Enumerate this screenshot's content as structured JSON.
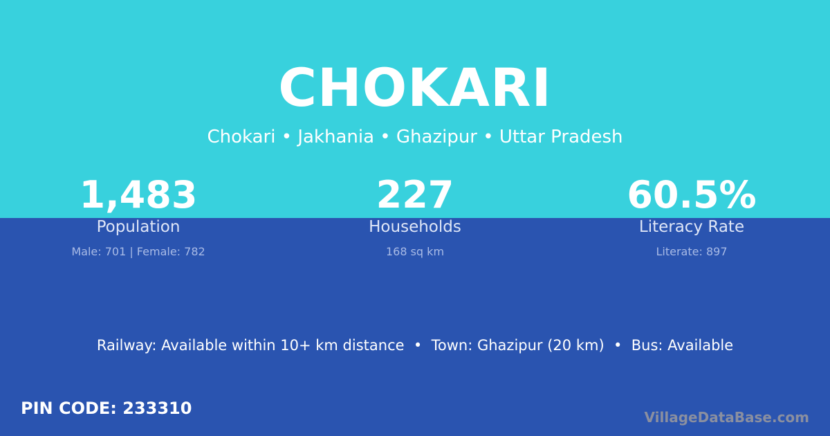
{
  "colors": {
    "top": "#38d1dd",
    "bottom": "#2a54b0"
  },
  "title": "CHOKARI",
  "subtitle": "Chokari • Jakhania • Ghazipur • Uttar Pradesh",
  "stats": [
    {
      "value": "1,483",
      "label": "Population",
      "detail": "Male: 701 | Female: 782"
    },
    {
      "value": "227",
      "label": "Households",
      "detail": "168 sq km"
    },
    {
      "value": "60.5%",
      "label": "Literacy Rate",
      "detail": "Literate: 897"
    }
  ],
  "info": "Railway: Available within 10+ km distance  •  Town: Ghazipur (20 km)  •  Bus: Available",
  "pin": "PIN CODE: 233310",
  "brand": "VillageDataBase.com"
}
